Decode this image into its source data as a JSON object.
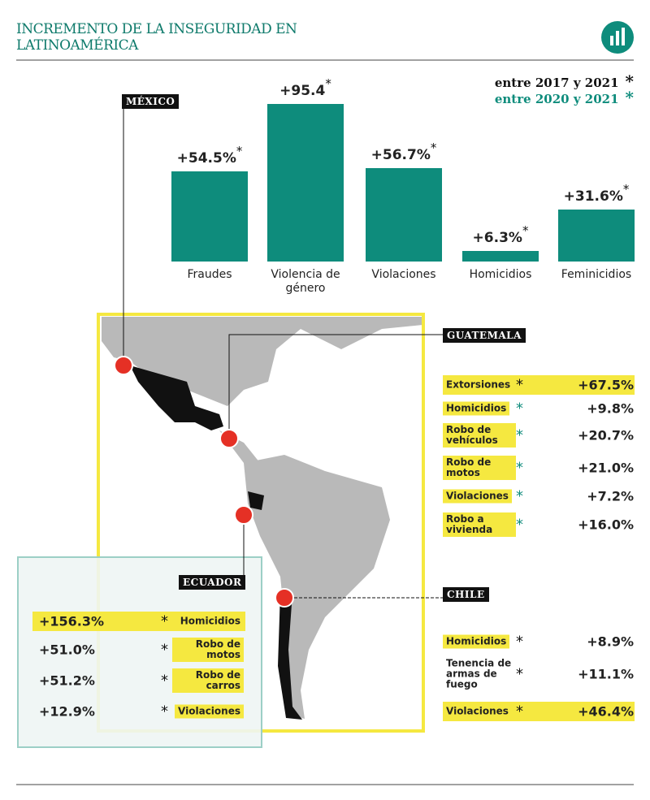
{
  "header": {
    "title": "INCREMENTO DE LA INSEGURIDAD EN LATINOAMÉRICA",
    "legend": [
      {
        "text": "entre 2017 y 2021",
        "mark": "*",
        "color": "#111111"
      },
      {
        "text": "entre 2020 y 2021",
        "mark": "*",
        "color": "#0e8c7c"
      }
    ]
  },
  "chart_data": {
    "type": "bar",
    "country": "MÉXICO",
    "categories": [
      "Fraudes",
      "Violencia de género",
      "Violaciones",
      "Homicidios",
      "Feminicidios"
    ],
    "values": [
      54.5,
      95.4,
      56.7,
      6.3,
      31.6
    ],
    "value_labels": [
      "+54.5%",
      "+95.4",
      "+56.7%",
      "+6.3%",
      "+31.6%"
    ],
    "label_mark": "*",
    "label_mark_color": "#111111",
    "color": "#0e8c7c"
  },
  "countries": [
    {
      "name": "GUATEMALA",
      "layout": "label-first",
      "rows": [
        {
          "label": "Extorsiones",
          "mark": "*",
          "color": "#111111",
          "value": "+67.5%",
          "highlight": "full"
        },
        {
          "label": "Homicidios",
          "mark": "*",
          "color": "#0e8c7c",
          "value": "+9.8%",
          "highlight": "label"
        },
        {
          "label": "Robo de vehículos",
          "mark": "*",
          "color": "#0e8c7c",
          "value": "+20.7%",
          "highlight": "label"
        },
        {
          "label": "Robo de motos",
          "mark": "*",
          "color": "#0e8c7c",
          "value": "+21.0%",
          "highlight": "label"
        },
        {
          "label": "Violaciones",
          "mark": "*",
          "color": "#0e8c7c",
          "value": "+7.2%",
          "highlight": "label"
        },
        {
          "label": "Robo a vivienda",
          "mark": "*",
          "color": "#0e8c7c",
          "value": "+16.0%",
          "highlight": "label"
        }
      ]
    },
    {
      "name": "ECUADOR",
      "layout": "value-first",
      "rows": [
        {
          "label": "Homicidios",
          "mark": "*",
          "color": "#111111",
          "value": "+156.3%",
          "highlight": "full"
        },
        {
          "label": "Robo de motos",
          "mark": "*",
          "color": "#111111",
          "value": "+51.0%",
          "highlight": "label"
        },
        {
          "label": "Robo de carros",
          "mark": "*",
          "color": "#111111",
          "value": "+51.2%",
          "highlight": "label"
        },
        {
          "label": "Violaciones",
          "mark": "*",
          "color": "#111111",
          "value": "+12.9%",
          "highlight": "label"
        }
      ]
    },
    {
      "name": "CHILE",
      "layout": "label-first",
      "rows": [
        {
          "label": "Homicidios",
          "mark": "*",
          "color": "#111111",
          "value": "+8.9%",
          "highlight": "label"
        },
        {
          "label": "Tenencia de armas de fuego",
          "mark": "*",
          "color": "#111111",
          "value": "+11.1%",
          "highlight": "none"
        },
        {
          "label": "Violaciones",
          "mark": "*",
          "color": "#111111",
          "value": "+46.4%",
          "highlight": "full"
        }
      ]
    }
  ]
}
